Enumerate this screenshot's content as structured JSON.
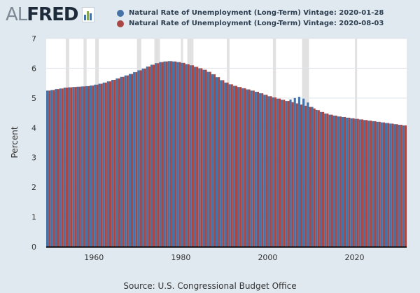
{
  "logo": {
    "part1": "AL",
    "part2": "FRED"
  },
  "colors": {
    "series1": "#4572a7",
    "series2": "#aa4643",
    "recession": "#e1e1e1",
    "plot_bg": "#ffffff",
    "grid": "#e1e5ea"
  },
  "legend": [
    {
      "label": "Natural Rate of Unemployment (Long-Term) Vintage: 2020-01-28"
    },
    {
      "label": "Natural Rate of Unemployment (Long-Term) Vintage: 2020-08-03"
    }
  ],
  "source": "Source: U.S. Congressional Budget Office",
  "chart_data": {
    "type": "bar",
    "ylabel": "Percent",
    "xlabel": "",
    "ylim": [
      0,
      7
    ],
    "xlim": [
      1949,
      2031
    ],
    "yticks": [
      0,
      1,
      2,
      3,
      4,
      5,
      6,
      7
    ],
    "xticks": [
      1960,
      1980,
      2000,
      2020
    ],
    "grid": true,
    "legend_position": "top",
    "recessions": [
      [
        1953.5,
        1954.3
      ],
      [
        1957.6,
        1958.3
      ],
      [
        1960.3,
        1961.1
      ],
      [
        1969.9,
        1970.9
      ],
      [
        1973.9,
        1975.2
      ],
      [
        1980.0,
        1980.5
      ],
      [
        1981.5,
        1982.9
      ],
      [
        1990.6,
        1991.2
      ],
      [
        2001.2,
        2001.9
      ],
      [
        2007.9,
        2009.5
      ],
      [
        2020.1,
        2020.3
      ]
    ],
    "series": [
      {
        "name": "Natural Rate of Unemployment (Long-Term) Vintage: 2020-01-28",
        "x": [
          1949,
          1950,
          1951,
          1952,
          1953,
          1954,
          1955,
          1956,
          1957,
          1958,
          1959,
          1960,
          1961,
          1962,
          1963,
          1964,
          1965,
          1966,
          1967,
          1968,
          1969,
          1970,
          1971,
          1972,
          1973,
          1974,
          1975,
          1976,
          1977,
          1978,
          1979,
          1980,
          1981,
          1982,
          1983,
          1984,
          1985,
          1986,
          1987,
          1988,
          1989,
          1990,
          1991,
          1992,
          1993,
          1994,
          1995,
          1996,
          1997,
          1998,
          1999,
          2000,
          2001,
          2002,
          2003,
          2004,
          2005,
          2006,
          2007,
          2008,
          2009,
          2010,
          2011,
          2012,
          2013,
          2014,
          2015,
          2016,
          2017,
          2018,
          2019,
          2020,
          2021,
          2022,
          2023,
          2024,
          2025,
          2026,
          2027,
          2028,
          2029,
          2030,
          2031
        ],
        "values": [
          5.25,
          5.27,
          5.3,
          5.32,
          5.35,
          5.36,
          5.37,
          5.38,
          5.39,
          5.4,
          5.42,
          5.45,
          5.48,
          5.52,
          5.56,
          5.61,
          5.66,
          5.71,
          5.76,
          5.81,
          5.87,
          5.93,
          5.99,
          6.06,
          6.12,
          6.17,
          6.21,
          6.23,
          6.24,
          6.23,
          6.21,
          6.18,
          6.14,
          6.1,
          6.05,
          6.0,
          5.95,
          5.88,
          5.8,
          5.7,
          5.6,
          5.52,
          5.46,
          5.41,
          5.37,
          5.33,
          5.29,
          5.25,
          5.21,
          5.16,
          5.11,
          5.06,
          5.02,
          4.98,
          4.94,
          4.9,
          4.95,
          5.0,
          5.04,
          4.98,
          4.85,
          4.7,
          4.6,
          4.53,
          4.48,
          4.44,
          4.41,
          4.38,
          4.36,
          4.34,
          4.32,
          4.3,
          4.28,
          4.26,
          4.24,
          4.22,
          4.2,
          4.18,
          4.16,
          4.14,
          4.12,
          4.1,
          4.08
        ]
      },
      {
        "name": "Natural Rate of Unemployment (Long-Term) Vintage: 2020-08-03",
        "x": [
          1949,
          1950,
          1951,
          1952,
          1953,
          1954,
          1955,
          1956,
          1957,
          1958,
          1959,
          1960,
          1961,
          1962,
          1963,
          1964,
          1965,
          1966,
          1967,
          1968,
          1969,
          1970,
          1971,
          1972,
          1973,
          1974,
          1975,
          1976,
          1977,
          1978,
          1979,
          1980,
          1981,
          1982,
          1983,
          1984,
          1985,
          1986,
          1987,
          1988,
          1989,
          1990,
          1991,
          1992,
          1993,
          1994,
          1995,
          1996,
          1997,
          1998,
          1999,
          2000,
          2001,
          2002,
          2003,
          2004,
          2005,
          2006,
          2007,
          2008,
          2009,
          2010,
          2011,
          2012,
          2013,
          2014,
          2015,
          2016,
          2017,
          2018,
          2019,
          2020,
          2021,
          2022,
          2023,
          2024,
          2025,
          2026,
          2027,
          2028,
          2029,
          2030,
          2031
        ],
        "values": [
          5.25,
          5.27,
          5.3,
          5.32,
          5.35,
          5.36,
          5.37,
          5.38,
          5.39,
          5.4,
          5.42,
          5.45,
          5.48,
          5.52,
          5.56,
          5.61,
          5.66,
          5.71,
          5.76,
          5.81,
          5.87,
          5.93,
          5.99,
          6.06,
          6.12,
          6.17,
          6.21,
          6.23,
          6.24,
          6.23,
          6.21,
          6.18,
          6.14,
          6.1,
          6.05,
          6.0,
          5.95,
          5.88,
          5.8,
          5.7,
          5.6,
          5.52,
          5.46,
          5.41,
          5.37,
          5.33,
          5.29,
          5.25,
          5.21,
          5.16,
          5.11,
          5.06,
          5.02,
          4.98,
          4.94,
          4.9,
          4.86,
          4.82,
          4.78,
          4.74,
          4.7,
          4.65,
          4.59,
          4.53,
          4.48,
          4.44,
          4.41,
          4.38,
          4.36,
          4.34,
          4.32,
          4.3,
          4.28,
          4.26,
          4.24,
          4.22,
          4.2,
          4.18,
          4.16,
          4.14,
          4.12,
          4.1,
          4.08
        ]
      }
    ]
  }
}
